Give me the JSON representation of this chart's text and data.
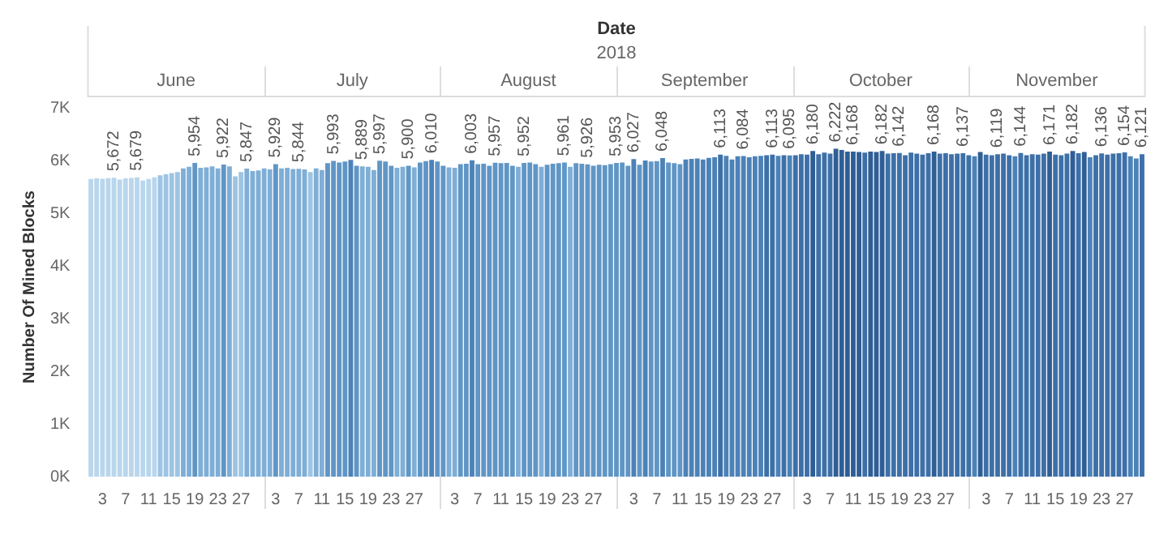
{
  "chart_data": {
    "type": "bar",
    "xlabel": "Date",
    "ylabel": "Number Of Mined Blocks",
    "annotations": [
      "2018",
      "June",
      "July",
      "August",
      "September",
      "October",
      "November"
    ],
    "categories": [
      null,
      null,
      "3",
      null,
      null,
      null,
      "7",
      null,
      null,
      null,
      "11",
      null,
      null,
      null,
      "15",
      null,
      null,
      null,
      "19",
      null,
      null,
      null,
      "23",
      null,
      null,
      null,
      "27",
      null,
      null,
      null,
      null,
      null,
      "3",
      null,
      null,
      null,
      "7",
      null,
      null,
      null,
      "11",
      null,
      null,
      null,
      "15",
      null,
      null,
      null,
      "19",
      null,
      null,
      null,
      "23",
      null,
      null,
      null,
      "27",
      null,
      null,
      null,
      null,
      null,
      null,
      "3",
      null,
      null,
      null,
      "7",
      null,
      null,
      null,
      "11",
      null,
      null,
      null,
      "15",
      null,
      null,
      null,
      "19",
      null,
      null,
      null,
      "23",
      null,
      null,
      null,
      "27",
      null,
      null,
      null,
      null,
      null,
      null,
      "3",
      null,
      null,
      null,
      "7",
      null,
      null,
      null,
      "11",
      null,
      null,
      null,
      "15",
      null,
      null,
      null,
      "19",
      null,
      null,
      null,
      "23",
      null,
      null,
      null,
      "27",
      null,
      null,
      null,
      null,
      null,
      "3",
      null,
      null,
      null,
      "7",
      null,
      null,
      null,
      "11",
      null,
      null,
      null,
      "15",
      null,
      null,
      null,
      "19",
      null,
      null,
      null,
      "23",
      null,
      null,
      null,
      "27",
      null,
      null,
      null,
      null,
      null,
      null,
      "3",
      null,
      null,
      null,
      "7",
      null,
      null,
      null,
      "11",
      null,
      null,
      null,
      "15",
      null,
      null,
      null,
      "19",
      null,
      null,
      null,
      "23",
      null,
      null,
      null,
      "27",
      null,
      null,
      null
    ],
    "values": [
      5650,
      5660,
      5655,
      5665,
      5672,
      5640,
      5660,
      5670,
      5679,
      5620,
      5650,
      5680,
      5720,
      5740,
      5760,
      5780,
      5850,
      5880,
      5954,
      5860,
      5870,
      5890,
      5850,
      5922,
      5890,
      5700,
      5780,
      5847,
      5800,
      5810,
      5850,
      5830,
      5929,
      5850,
      5860,
      5840,
      5844,
      5830,
      5780,
      5850,
      5820,
      5950,
      5993,
      5960,
      5980,
      6010,
      5900,
      5889,
      5880,
      5820,
      5997,
      5980,
      5900,
      5860,
      5880,
      5900,
      5870,
      5960,
      5990,
      6010,
      5980,
      5900,
      5870,
      5860,
      5930,
      5940,
      6003,
      5930,
      5940,
      5900,
      5957,
      5950,
      5955,
      5900,
      5880,
      5952,
      5960,
      5930,
      5880,
      5920,
      5940,
      5950,
      5961,
      5880,
      5950,
      5940,
      5926,
      5900,
      5920,
      5910,
      5930,
      5953,
      5960,
      5900,
      6027,
      5920,
      6000,
      5980,
      5990,
      6048,
      5960,
      5950,
      5930,
      6020,
      6030,
      6040,
      6020,
      6050,
      6060,
      6113,
      6090,
      6020,
      6080,
      6084,
      6060,
      6080,
      6090,
      6100,
      6113,
      6090,
      6100,
      6095,
      6100,
      6120,
      6110,
      6180,
      6120,
      6150,
      6130,
      6222,
      6200,
      6170,
      6168,
      6160,
      6150,
      6170,
      6160,
      6182,
      6130,
      6140,
      6142,
      6100,
      6150,
      6130,
      6110,
      6140,
      6168,
      6130,
      6140,
      6120,
      6130,
      6137,
      6100,
      6080,
      6160,
      6110,
      6100,
      6119,
      6130,
      6100,
      6080,
      6144,
      6100,
      6120,
      6110,
      6130,
      6171,
      6110,
      6100,
      6130,
      6182,
      6140,
      6160,
      6060,
      6100,
      6136,
      6110,
      6130,
      6140,
      6154,
      6080,
      6040,
      6121
    ],
    "value_labels": [
      null,
      null,
      null,
      null,
      "5,672",
      null,
      null,
      null,
      "5,679",
      null,
      null,
      null,
      null,
      null,
      null,
      null,
      null,
      null,
      "5,954",
      null,
      null,
      null,
      null,
      "5,922",
      null,
      null,
      null,
      "5,847",
      null,
      null,
      null,
      null,
      "5,929",
      null,
      null,
      null,
      "5,844",
      null,
      null,
      null,
      null,
      null,
      "5,993",
      null,
      null,
      null,
      null,
      "5,889",
      null,
      null,
      "5,997",
      null,
      null,
      null,
      null,
      "5,900",
      null,
      null,
      null,
      "6,010",
      null,
      null,
      null,
      null,
      null,
      null,
      "6,003",
      null,
      null,
      null,
      "5,957",
      null,
      null,
      null,
      null,
      "5,952",
      null,
      null,
      null,
      null,
      null,
      null,
      "5,961",
      null,
      null,
      null,
      "5,926",
      null,
      null,
      null,
      null,
      "5,953",
      null,
      null,
      "6,027",
      null,
      null,
      null,
      null,
      "6,048",
      null,
      null,
      null,
      null,
      null,
      null,
      null,
      null,
      null,
      "6,113",
      null,
      null,
      null,
      "6,084",
      null,
      null,
      null,
      null,
      "6,113",
      null,
      null,
      "6,095",
      null,
      null,
      null,
      "6,180",
      null,
      null,
      null,
      "6,222",
      null,
      null,
      "6,168",
      null,
      null,
      null,
      null,
      "6,182",
      null,
      null,
      "6,142",
      null,
      null,
      null,
      null,
      null,
      "6,168",
      null,
      null,
      null,
      null,
      "6,137",
      null,
      null,
      null,
      null,
      null,
      "6,119",
      null,
      null,
      null,
      "6,144",
      null,
      null,
      null,
      null,
      "6,171",
      null,
      null,
      null,
      "6,182",
      null,
      null,
      null,
      null,
      "6,136",
      null,
      null,
      null,
      "6,154",
      null,
      null,
      "6,121"
    ],
    "colors": [
      "#b9d6ec",
      "#b9d6ec",
      "#b9d6ec",
      "#b9d6ec",
      "#b9d6ec",
      "#b9d6ec",
      "#b9d6ec",
      "#b9d6ec",
      "#b9d6ec",
      "#b9d6ec",
      "#b9d6ec",
      "#b9d6ec",
      "#9dc4e3",
      "#9dc4e3",
      "#9dc4e3",
      "#9dc4e3",
      "#7faed6",
      "#7faed6",
      "#6096c6",
      "#7faed6",
      "#7faed6",
      "#7faed6",
      "#7faed6",
      "#6096c6",
      "#7faed6",
      "#9dc4e3",
      "#9dc4e3",
      "#7faed6",
      "#7faed6",
      "#7faed6",
      "#7faed6",
      "#7faed6",
      "#6096c6",
      "#7faed6",
      "#7faed6",
      "#7faed6",
      "#7faed6",
      "#7faed6",
      "#9dc4e3",
      "#7faed6",
      "#7faed6",
      "#6096c6",
      "#6096c6",
      "#6096c6",
      "#6096c6",
      "#4c82b7",
      "#6096c6",
      "#7faed6",
      "#7faed6",
      "#7faed6",
      "#6096c6",
      "#6096c6",
      "#6096c6",
      "#7faed6",
      "#7faed6",
      "#6096c6",
      "#7faed6",
      "#6096c6",
      "#6096c6",
      "#4c82b7",
      "#6096c6",
      "#6096c6",
      "#7faed6",
      "#7faed6",
      "#6096c6",
      "#6096c6",
      "#4c82b7",
      "#6096c6",
      "#6096c6",
      "#6096c6",
      "#6096c6",
      "#6096c6",
      "#6096c6",
      "#6096c6",
      "#7faed6",
      "#6096c6",
      "#6096c6",
      "#6096c6",
      "#7faed6",
      "#6096c6",
      "#6096c6",
      "#6096c6",
      "#6096c6",
      "#7faed6",
      "#6096c6",
      "#6096c6",
      "#6096c6",
      "#6096c6",
      "#6096c6",
      "#6096c6",
      "#6096c6",
      "#6096c6",
      "#6096c6",
      "#6096c6",
      "#4c82b7",
      "#6096c6",
      "#4c82b7",
      "#6096c6",
      "#6096c6",
      "#4c82b7",
      "#6096c6",
      "#6096c6",
      "#6096c6",
      "#4c82b7",
      "#4c82b7",
      "#4c82b7",
      "#4c82b7",
      "#4c82b7",
      "#4c82b7",
      "#3e70a8",
      "#4c82b7",
      "#4c82b7",
      "#4c82b7",
      "#4c82b7",
      "#4c82b7",
      "#4c82b7",
      "#4c82b7",
      "#3e70a8",
      "#3e70a8",
      "#4c82b7",
      "#3e70a8",
      "#4c82b7",
      "#3e70a8",
      "#3e70a8",
      "#3e70a8",
      "#2f5e96",
      "#3e70a8",
      "#3e70a8",
      "#3e70a8",
      "#2f5e96",
      "#2f5e96",
      "#2f5e96",
      "#2f5e96",
      "#2f5e96",
      "#3e70a8",
      "#2f5e96",
      "#2f5e96",
      "#2f5e96",
      "#3e70a8",
      "#3e70a8",
      "#3e70a8",
      "#3e70a8",
      "#3e70a8",
      "#3e70a8",
      "#3e70a8",
      "#3e70a8",
      "#2f5e96",
      "#3e70a8",
      "#3e70a8",
      "#3e70a8",
      "#3e70a8",
      "#3e70a8",
      "#3e70a8",
      "#4c82b7",
      "#2f5e96",
      "#3e70a8",
      "#3e70a8",
      "#3e70a8",
      "#3e70a8",
      "#3e70a8",
      "#4c82b7",
      "#3e70a8",
      "#3e70a8",
      "#3e70a8",
      "#3e70a8",
      "#3e70a8",
      "#2f5e96",
      "#3e70a8",
      "#3e70a8",
      "#3e70a8",
      "#2f5e96",
      "#3e70a8",
      "#2f5e96",
      "#4c82b7",
      "#3e70a8",
      "#3e70a8",
      "#3e70a8",
      "#3e70a8",
      "#3e70a8",
      "#3e70a8",
      "#4c82b7",
      "#4c82b7",
      "#3e70a8"
    ],
    "ylim": [
      0,
      7200
    ],
    "yticks": [
      {
        "value": 0,
        "label": "0K"
      },
      {
        "value": 1000,
        "label": "1K"
      },
      {
        "value": 2000,
        "label": "2K"
      },
      {
        "value": 3000,
        "label": "3K"
      },
      {
        "value": 4000,
        "label": "4K"
      },
      {
        "value": 5000,
        "label": "5K"
      },
      {
        "value": 6000,
        "label": "6K"
      },
      {
        "value": 7000,
        "label": "7K"
      }
    ],
    "grid": false,
    "legend": false
  }
}
